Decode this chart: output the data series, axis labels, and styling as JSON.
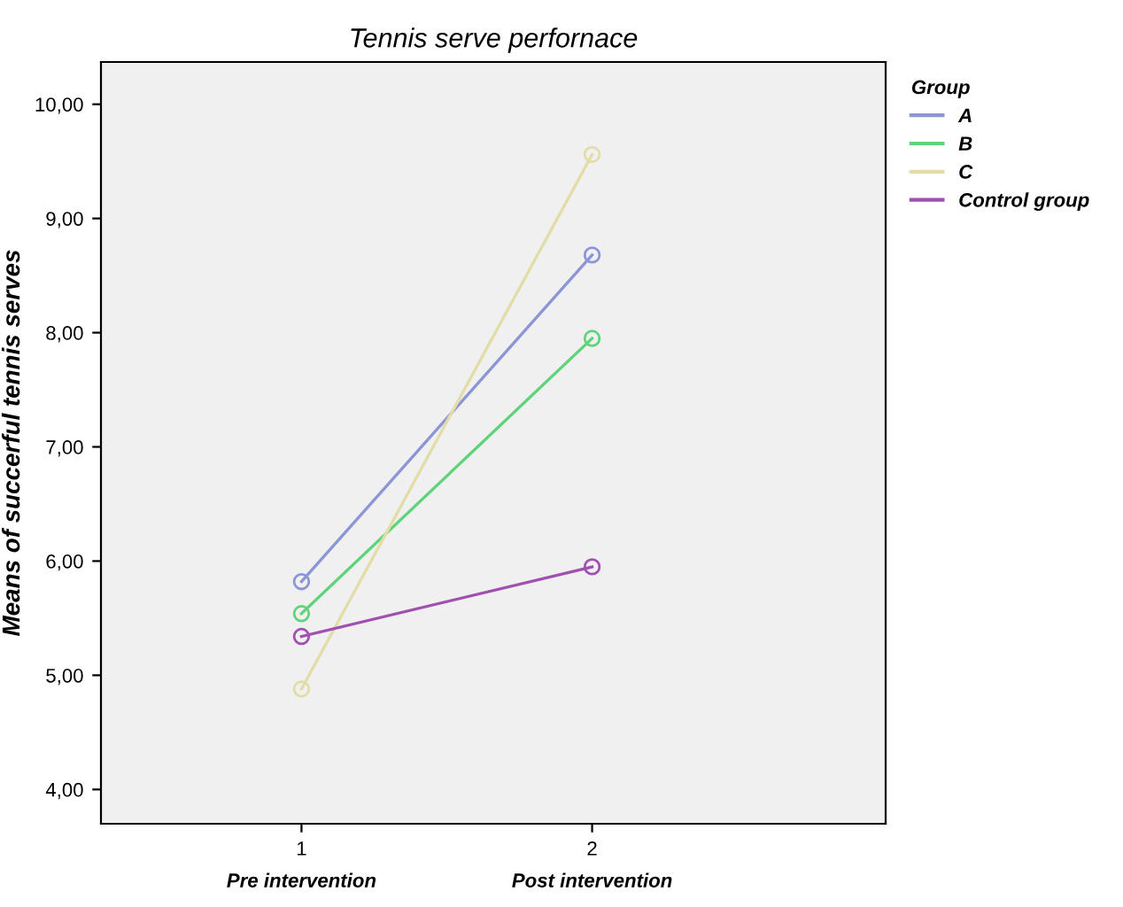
{
  "chart_data": {
    "type": "line",
    "title": "Tennis serve perfornace",
    "ylabel": "Means of succerful tennis serves",
    "legend_title": "Group",
    "x": [
      1,
      2
    ],
    "xlim": [
      0.31,
      3.01
    ],
    "xticks": [
      1,
      2
    ],
    "ylim": [
      3.7,
      10.37
    ],
    "yticks": [
      {
        "value": 4,
        "label": "4,00"
      },
      {
        "value": 5,
        "label": "5,00"
      },
      {
        "value": 6,
        "label": "6,00"
      },
      {
        "value": 7,
        "label": "7,00"
      },
      {
        "value": 8,
        "label": "8,00"
      },
      {
        "value": 9,
        "label": "9,00"
      },
      {
        "value": 10,
        "label": "10,00"
      }
    ],
    "series": [
      {
        "name": "A",
        "color": "#8c96d6",
        "values": [
          5.82,
          8.68
        ]
      },
      {
        "name": "B",
        "color": "#5fd37a",
        "values": [
          5.54,
          7.95
        ]
      },
      {
        "name": "C",
        "color": "#e2dda8",
        "values": [
          4.88,
          9.56
        ]
      },
      {
        "name": "Control group",
        "color": "#a050b0",
        "values": [
          5.34,
          5.95
        ]
      }
    ],
    "annotations": [
      "Pre intervention",
      "Post intervention"
    ],
    "marker": "circle",
    "line_style": "solid",
    "grid": false,
    "legend": "right"
  }
}
